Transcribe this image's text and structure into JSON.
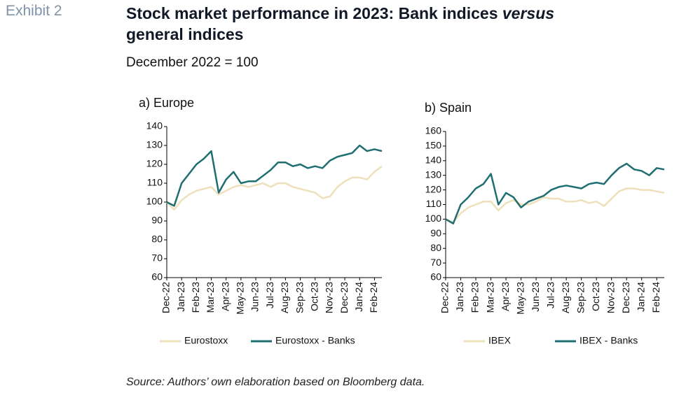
{
  "exhibit": "Exhibit 2",
  "title": [
    "Stock market performance in 2023: Bank indices",
    "versus",
    "general indices"
  ],
  "subtitle": "December 2022 = 100",
  "source": "Source: Authors’ own elaboration based on Bloomberg data.",
  "chart_data": [
    {
      "type": "line",
      "title": "a) Europe",
      "categories": [
        "Dec-22",
        null,
        "Jan-23",
        null,
        "Feb-23",
        null,
        "Mar-23",
        null,
        "Apr-23",
        null,
        "May-23",
        null,
        "Jun-23",
        null,
        "Jul-23",
        null,
        "Aug-23",
        null,
        "Sep-23",
        null,
        "Oct-23",
        null,
        "Nov-23",
        null,
        "Dec-23",
        null,
        "Jan-24",
        null,
        "Feb-24",
        null
      ],
      "series": [
        {
          "name": "Eurostoxx",
          "color": "#eee0bb",
          "values": [
            100,
            96,
            101,
            104,
            106,
            107,
            108,
            104,
            106,
            108,
            109,
            108,
            109,
            110,
            108,
            110,
            110,
            108,
            107,
            106,
            105,
            102,
            103,
            108,
            111,
            113,
            113,
            112,
            116,
            119
          ]
        },
        {
          "name": "Eurostoxx - Banks",
          "color": "#1f6e72",
          "values": [
            100,
            98,
            110,
            115,
            120,
            123,
            127,
            105,
            112,
            116,
            110,
            111,
            111,
            114,
            117,
            121,
            121,
            119,
            120,
            118,
            119,
            118,
            122,
            124,
            125,
            126,
            130,
            127,
            128,
            127
          ]
        }
      ],
      "ylim": [
        60,
        140
      ],
      "yticks": [
        60,
        70,
        80,
        90,
        100,
        110,
        120,
        130,
        140
      ]
    },
    {
      "type": "line",
      "title": "b) Spain",
      "categories": [
        "Dec-22",
        null,
        "Jan-23",
        null,
        "Feb-23",
        null,
        "Mar-23",
        null,
        "Apr-23",
        null,
        "May-23",
        null,
        "Jun-23",
        null,
        "Jul-23",
        null,
        "Aug-23",
        null,
        "Sep-23",
        null,
        "Oct-23",
        null,
        "Nov-23",
        null,
        "Dec-23",
        null,
        "Jan-24",
        null,
        "Feb-24",
        null
      ],
      "series": [
        {
          "name": "IBEX",
          "color": "#eee0bb",
          "values": [
            100,
            98,
            104,
            108,
            110,
            112,
            112,
            106,
            111,
            113,
            110,
            110,
            112,
            115,
            114,
            114,
            112,
            112,
            113,
            111,
            112,
            109,
            114,
            119,
            121,
            121,
            120,
            120,
            119,
            118
          ]
        },
        {
          "name": "IBEX - Banks",
          "color": "#1f6e72",
          "values": [
            100,
            97,
            110,
            115,
            121,
            124,
            131,
            110,
            118,
            115,
            108,
            112,
            114,
            116,
            120,
            122,
            123,
            122,
            121,
            124,
            125,
            124,
            130,
            135,
            138,
            134,
            133,
            130,
            135,
            134
          ]
        }
      ],
      "ylim": [
        60,
        160
      ],
      "yticks": [
        60,
        70,
        80,
        90,
        100,
        110,
        120,
        130,
        140,
        150,
        160
      ]
    }
  ]
}
